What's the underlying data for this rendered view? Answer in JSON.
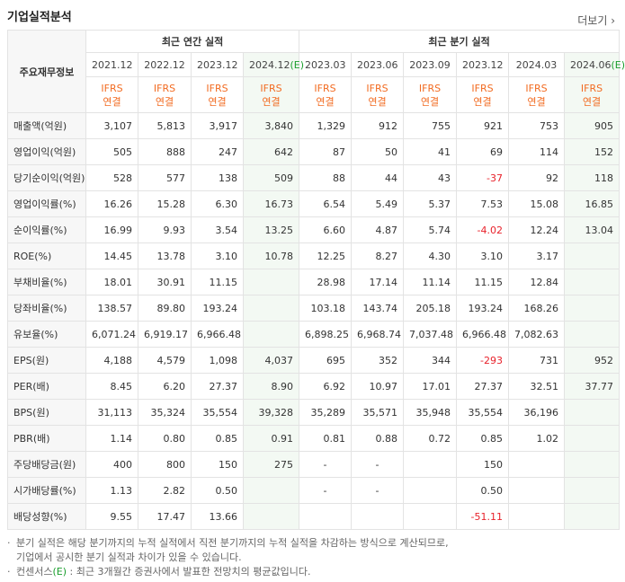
{
  "header": {
    "title": "기업실적분석",
    "more": "더보기 ›"
  },
  "table": {
    "corner": "주요재무정보",
    "groups": [
      "최근 연간 실적",
      "최근 분기 실적"
    ],
    "periods": [
      "2021.12",
      "2022.12",
      "2023.12",
      "2024.12(E)",
      "2023.03",
      "2023.06",
      "2023.09",
      "2023.12",
      "2024.03",
      "2024.06(E)"
    ],
    "basis": [
      [
        "IFRS",
        "연결"
      ],
      [
        "IFRS",
        "연결"
      ],
      [
        "IFRS",
        "연결"
      ],
      [
        "IFRS",
        "연결"
      ],
      [
        "IFRS",
        "연결"
      ],
      [
        "IFRS",
        "연결"
      ],
      [
        "IFRS",
        "연결"
      ],
      [
        "IFRS",
        "연결"
      ],
      [
        "IFRS",
        "연결"
      ],
      [
        "IFRS",
        "연결"
      ]
    ],
    "rows": [
      {
        "label": "매출액(억원)",
        "cells": [
          "3,107",
          "5,813",
          "3,917",
          "3,840",
          "1,329",
          "912",
          "755",
          "921",
          "753",
          "905"
        ]
      },
      {
        "label": "영업이익(억원)",
        "cells": [
          "505",
          "888",
          "247",
          "642",
          "87",
          "50",
          "41",
          "69",
          "114",
          "152"
        ]
      },
      {
        "label": "당기순이익(억원)",
        "cells": [
          "528",
          "577",
          "138",
          "509",
          "88",
          "44",
          "43",
          "-37",
          "92",
          "118"
        ]
      },
      {
        "label": "영업이익률(%)",
        "cells": [
          "16.26",
          "15.28",
          "6.30",
          "16.73",
          "6.54",
          "5.49",
          "5.37",
          "7.53",
          "15.08",
          "16.85"
        ]
      },
      {
        "label": "순이익률(%)",
        "cells": [
          "16.99",
          "9.93",
          "3.54",
          "13.25",
          "6.60",
          "4.87",
          "5.74",
          "-4.02",
          "12.24",
          "13.04"
        ]
      },
      {
        "label": "ROE(%)",
        "cells": [
          "14.45",
          "13.78",
          "3.10",
          "10.78",
          "12.25",
          "8.27",
          "4.30",
          "3.10",
          "3.17",
          null
        ]
      },
      {
        "label": "부채비율(%)",
        "cells": [
          "18.01",
          "30.91",
          "11.15",
          null,
          "28.98",
          "17.14",
          "11.14",
          "11.15",
          "12.84",
          null
        ]
      },
      {
        "label": "당좌비율(%)",
        "cells": [
          "138.57",
          "89.80",
          "193.24",
          null,
          "103.18",
          "143.74",
          "205.18",
          "193.24",
          "168.26",
          null
        ]
      },
      {
        "label": "유보율(%)",
        "cells": [
          "6,071.24",
          "6,919.17",
          "6,966.48",
          null,
          "6,898.25",
          "6,968.74",
          "7,037.48",
          "6,966.48",
          "7,082.63",
          null
        ]
      },
      {
        "label": "EPS(원)",
        "cells": [
          "4,188",
          "4,579",
          "1,098",
          "4,037",
          "695",
          "352",
          "344",
          "-293",
          "731",
          "952"
        ]
      },
      {
        "label": "PER(배)",
        "cells": [
          "8.45",
          "6.20",
          "27.37",
          "8.90",
          "6.92",
          "10.97",
          "17.01",
          "27.37",
          "32.51",
          "37.77"
        ]
      },
      {
        "label": "BPS(원)",
        "cells": [
          "31,113",
          "35,324",
          "35,554",
          "39,328",
          "35,289",
          "35,571",
          "35,948",
          "35,554",
          "36,196",
          null
        ]
      },
      {
        "label": "PBR(배)",
        "cells": [
          "1.14",
          "0.80",
          "0.85",
          "0.91",
          "0.81",
          "0.88",
          "0.72",
          "0.85",
          "1.02",
          null
        ]
      },
      {
        "label": "주당배당금(원)",
        "cells": [
          "400",
          "800",
          "150",
          "275",
          "-",
          "-",
          null,
          "150",
          null,
          null
        ]
      },
      {
        "label": "시가배당률(%)",
        "cells": [
          "1.13",
          "2.82",
          "0.50",
          null,
          "-",
          "-",
          null,
          "0.50",
          null,
          null
        ]
      },
      {
        "label": "배당성향(%)",
        "cells": [
          "9.55",
          "17.47",
          "13.66",
          null,
          null,
          null,
          null,
          "-51.11",
          null,
          null
        ]
      }
    ]
  },
  "notes": [
    "분기 실적은 해당 분기까지의 누적 실적에서 직전 분기까지의 누적 실적을 차감하는 방식으로 계산되므로,",
    "기업에서 공시한 분기 실적과 차이가 있을 수 있습니다.",
    "컨센서스(E) : 최근 3개월간 증권사에서 발표한 전망치의 평균값입니다."
  ]
}
